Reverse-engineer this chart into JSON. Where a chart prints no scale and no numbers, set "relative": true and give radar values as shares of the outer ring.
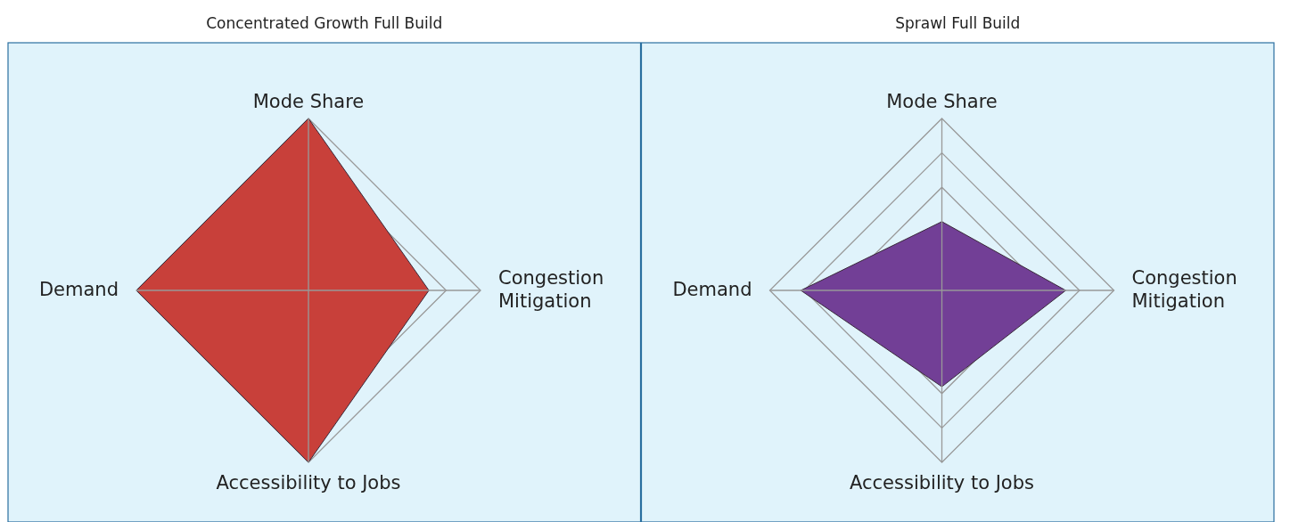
{
  "chart_data": [
    {
      "type": "radar",
      "title": "Concentrated Growth Full Build",
      "categories": [
        "Mode Share",
        "Congestion Mitigation",
        "Accessibility to Jobs",
        "Demand"
      ],
      "relative": true,
      "series": [
        {
          "color": "#c8403a",
          "values": [
            1,
            0.7,
            1,
            1
          ]
        }
      ]
    },
    {
      "type": "radar",
      "title": "Sprawl Full Build",
      "categories": [
        "Mode Share",
        "Congestion Mitigation",
        "Accessibility to Jobs",
        "Demand"
      ],
      "relative": true,
      "series": [
        {
          "color": "#723f96",
          "values": [
            0.4,
            0.72,
            0.56,
            0.82
          ]
        }
      ]
    }
  ]
}
